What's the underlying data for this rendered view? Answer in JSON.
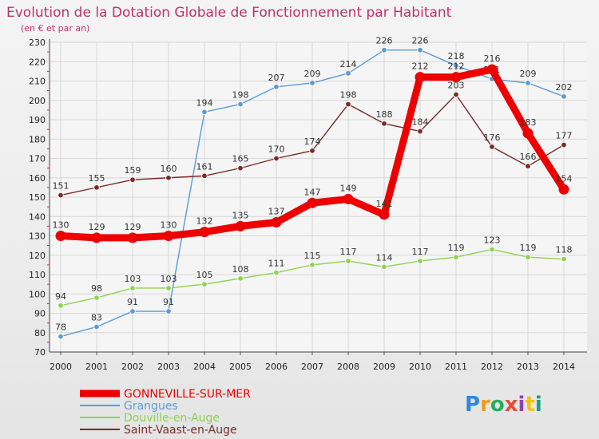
{
  "chart_data": {
    "type": "line",
    "title": "Evolution de la Dotation Globale de Fonctionnement par Habitant",
    "subtitle": "(en € et par an)",
    "x": [
      "2000",
      "2001",
      "2002",
      "2003",
      "2004",
      "2005",
      "2006",
      "2007",
      "2008",
      "2009",
      "2010",
      "2011",
      "2012",
      "2013",
      "2014"
    ],
    "ylim": [
      70,
      230
    ],
    "yticks": [
      70,
      80,
      90,
      100,
      110,
      120,
      130,
      140,
      150,
      160,
      170,
      180,
      190,
      200,
      210,
      220,
      230
    ],
    "grid": true,
    "series": [
      {
        "name": "GONNEVILLE-SUR-MER",
        "color": "#ee0000",
        "bold": true,
        "values": [
          130,
          129,
          129,
          130,
          132,
          135,
          137,
          147,
          149,
          141,
          212,
          212,
          216,
          183,
          154
        ]
      },
      {
        "name": "Grangues",
        "color": "#5b9bd5",
        "bold": false,
        "values": [
          78,
          83,
          91,
          91,
          194,
          198,
          207,
          209,
          214,
          226,
          226,
          218,
          211,
          209,
          202
        ]
      },
      {
        "name": "Douville-en-Auge",
        "color": "#8fd14f",
        "bold": false,
        "values": [
          94,
          98,
          103,
          103,
          105,
          108,
          111,
          115,
          117,
          114,
          117,
          119,
          123,
          119,
          118
        ]
      },
      {
        "name": "Saint-Vaast-en-Auge",
        "color": "#7a2a2a",
        "bold": false,
        "values": [
          151,
          155,
          159,
          160,
          161,
          165,
          170,
          174,
          198,
          188,
          184,
          203,
          176,
          166,
          177
        ]
      }
    ]
  },
  "logo": {
    "text": "Proxiti"
  }
}
